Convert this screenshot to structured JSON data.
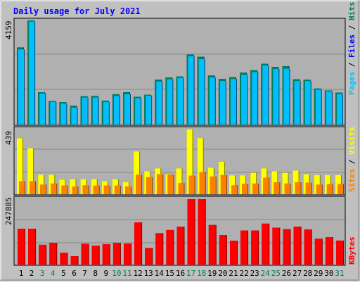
{
  "chart_data": {
    "type": "bar",
    "title": "Daily usage for July 2021",
    "categories": [
      "1",
      "2",
      "3",
      "4",
      "5",
      "6",
      "7",
      "8",
      "9",
      "10",
      "11",
      "12",
      "13",
      "14",
      "15",
      "16",
      "17",
      "18",
      "19",
      "20",
      "21",
      "22",
      "23",
      "24",
      "25",
      "26",
      "27",
      "28",
      "29",
      "30",
      "31"
    ],
    "weekend_days": [
      "3",
      "4",
      "10",
      "11",
      "17",
      "18",
      "24",
      "25",
      "31"
    ],
    "panels": [
      {
        "name": "hits_files",
        "ylabel_parts": [
          "Pages",
          "Files",
          "Hits"
        ],
        "max_label": "4159",
        "ymax": 4159,
        "series": [
          {
            "name": "Hits",
            "color": "#00805c",
            "values": [
              3080,
              4159,
              1290,
              940,
              900,
              750,
              1130,
              1140,
              950,
              1210,
              1290,
              1110,
              1190,
              1790,
              1880,
              1920,
              2800,
              2710,
              1960,
              1820,
              1890,
              2070,
              2170,
              2430,
              2300,
              2330,
              1810,
              1790,
              1440,
              1360,
              1280
            ]
          },
          {
            "name": "Files",
            "color": "#00bfff",
            "values": [
              3000,
              4110,
              1240,
              900,
              840,
              680,
              1080,
              1080,
              900,
              1140,
              1210,
              1060,
              1150,
              1720,
              1810,
              1860,
              2730,
              2610,
              1880,
              1740,
              1820,
              1990,
              2100,
              2360,
              2220,
              2230,
              1740,
              1740,
              1390,
              1320,
              1220
            ]
          }
        ]
      },
      {
        "name": "visits_sites",
        "ylabel_parts": [
          "Sites",
          "Visits"
        ],
        "max_label": "439",
        "ymax": 439,
        "series": [
          {
            "name": "Visits",
            "color": "#ffff00",
            "values": [
              380,
              312,
              132,
              132,
              98,
              102,
              102,
              102,
              88,
              102,
              82,
              290,
              155,
              175,
              135,
              175,
              439,
              380,
              180,
              220,
              128,
              128,
              145,
              175,
              155,
              145,
              160,
              135,
              130,
              130,
              130
            ]
          },
          {
            "name": "Sites",
            "color": "#ff8000",
            "values": [
              88,
              88,
              65,
              72,
              58,
              52,
              60,
              58,
              58,
              58,
              52,
              132,
              115,
              135,
              132,
              75,
              125,
              150,
              120,
              130,
              60,
              70,
              72,
              112,
              80,
              72,
              80,
              78,
              65,
              68,
              68
            ]
          }
        ]
      },
      {
        "name": "kbytes",
        "ylabel_parts": [
          "KBytes"
        ],
        "max_label": "247885",
        "ymax": 247885,
        "series": [
          {
            "name": "KBytes",
            "color": "#ff0000",
            "values": [
              136000,
              136000,
              75000,
              82000,
              45000,
              32000,
              79000,
              72000,
              77000,
              82000,
              80000,
              160000,
              63000,
              119000,
              131000,
              144000,
              247885,
              247885,
              150000,
              112000,
              90000,
              129000,
              129000,
              155000,
              140000,
              134000,
              144000,
              133000,
              98000,
              104000,
              91000
            ]
          }
        ]
      }
    ]
  },
  "colors": {
    "frame": "#c0c0c0",
    "plot_bg": "#b0b0b0",
    "title": "#0000ff",
    "weekend_label": "#00805c",
    "weekday_label": "#000000",
    "ylabel_pages": "#00bfff",
    "ylabel_files": "#0000ff",
    "ylabel_hits": "#00805c",
    "ylabel_sites": "#ff8000",
    "ylabel_visits": "#ffff00",
    "ylabel_kbytes": "#ff0000"
  }
}
